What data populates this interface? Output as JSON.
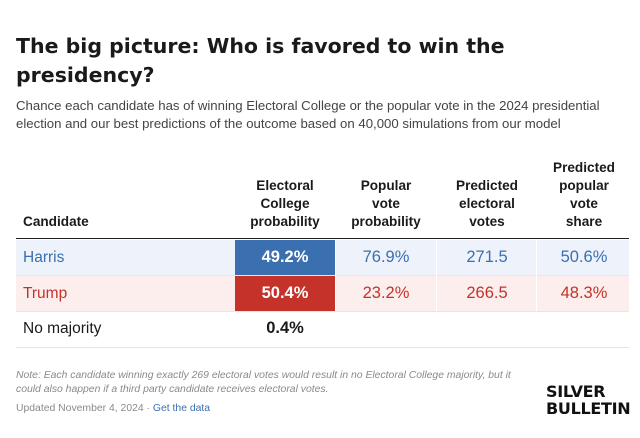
{
  "title": "The big picture: Who is favored to win the presidency?",
  "subtitle": "Chance each candidate has of winning Electoral College or the popular vote in the 2024 presidential election and our best predictions of the outcome based on 40,000 simulations from our model",
  "headers": {
    "candidate": "Candidate",
    "ec_prob": [
      "Electoral",
      "College",
      "probability"
    ],
    "pop_prob": [
      "Popular",
      "vote",
      "probability"
    ],
    "pred_ev": [
      "Predicted",
      "electoral",
      "votes"
    ],
    "pred_share": [
      "Predicted",
      "popular",
      "vote",
      "share"
    ]
  },
  "rows": [
    {
      "name": "Harris",
      "ec_prob": "49.2%",
      "pop_prob": "76.9%",
      "pred_ev": "271.5",
      "pred_share": "50.6%"
    },
    {
      "name": "Trump",
      "ec_prob": "50.4%",
      "pop_prob": "23.2%",
      "pred_ev": "266.5",
      "pred_share": "48.3%"
    },
    {
      "name": "No majority",
      "ec_prob": "0.4%"
    }
  ],
  "note": "Note: Each candidate winning exactly 269 electoral votes would result in no Electoral College majority, but it could also happen if a third party candidate receives electoral votes.",
  "footer": {
    "updated": "Updated November 4, 2024 · ",
    "link": "Get the data"
  },
  "logo": [
    "SILVER",
    "BULLETIN"
  ],
  "colors": {
    "harris_blue": "#3a6fb0",
    "harris_bg": "#eef3fb",
    "harris_ec_fill": "#3a6fb0",
    "trump_red": "#c4322a",
    "trump_bg": "#fbeeed",
    "trump_ec_fill": "#c4322a"
  }
}
